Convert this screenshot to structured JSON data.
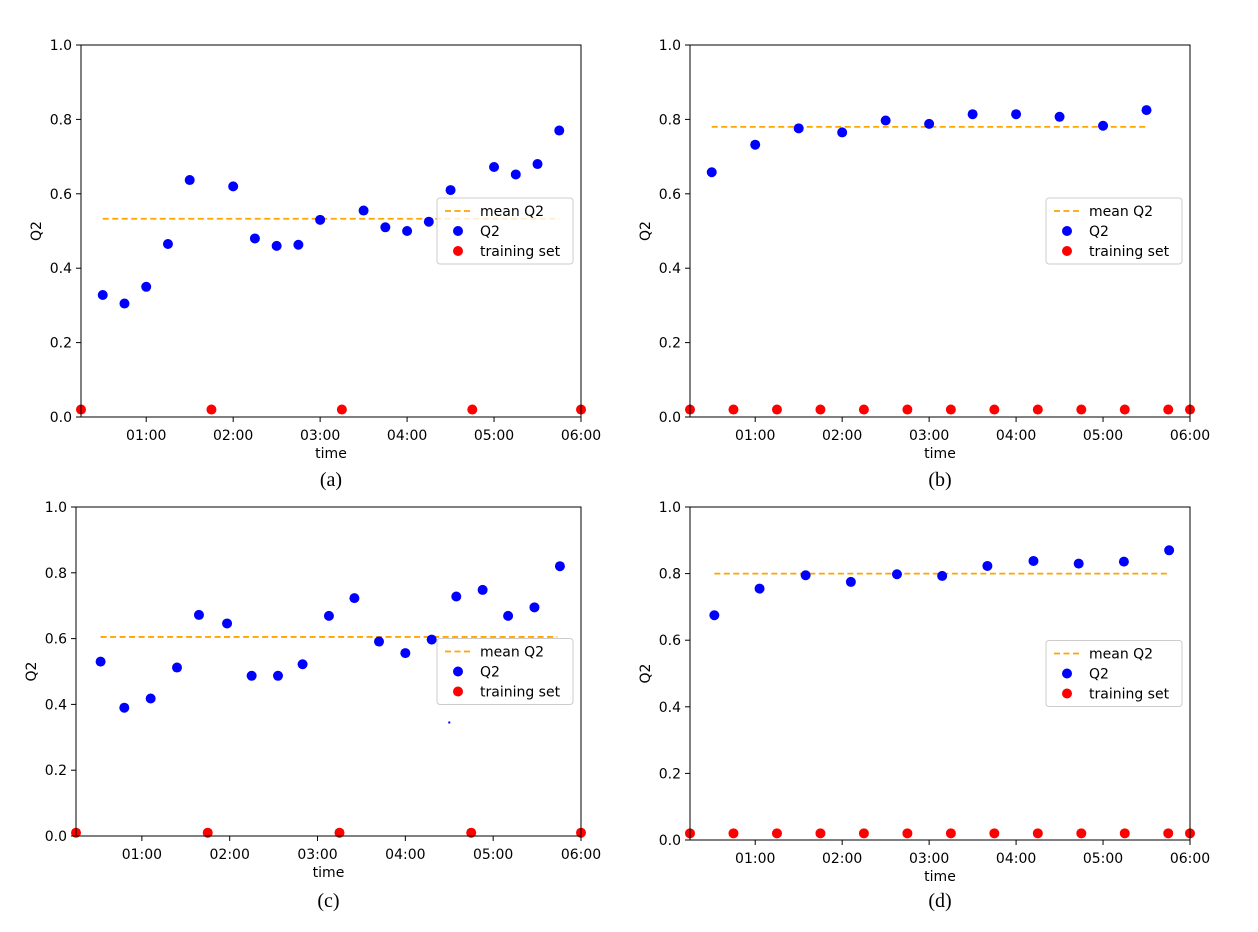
{
  "colors": {
    "mean": "#ffa500",
    "q2": "#0000ff",
    "training": "#ff0000",
    "axis": "#000000"
  },
  "chart_data": [
    {
      "panel": "a",
      "caption": "(a)",
      "type": "scatter",
      "xlabel": "time",
      "ylabel": "Q2",
      "xlim": [
        0.25,
        6.0
      ],
      "ylim": [
        0.0,
        1.0
      ],
      "xticks": [
        1,
        2,
        3,
        4,
        5,
        6
      ],
      "xtick_labels": [
        "01:00",
        "02:00",
        "03:00",
        "04:00",
        "05:00",
        "06:00"
      ],
      "yticks": [
        0.0,
        0.2,
        0.4,
        0.6,
        0.8,
        1.0
      ],
      "ytick_labels": [
        "0.0",
        "0.2",
        "0.4",
        "0.6",
        "0.8",
        "1.0"
      ],
      "legend": {
        "position": "center-right",
        "entries": [
          "mean Q2",
          "Q2",
          "training set"
        ]
      },
      "mean_line": {
        "x": [
          0.5,
          5.75
        ],
        "y": 0.533
      },
      "q2": {
        "x": [
          0.5,
          0.75,
          1.0,
          1.25,
          1.5,
          2.0,
          2.25,
          2.5,
          2.75,
          3.0,
          3.5,
          3.75,
          4.0,
          4.25,
          4.5,
          5.0,
          5.25,
          5.5,
          5.75
        ],
        "y": [
          0.328,
          0.305,
          0.35,
          0.465,
          0.637,
          0.62,
          0.48,
          0.46,
          0.463,
          0.53,
          0.555,
          0.51,
          0.5,
          0.525,
          0.61,
          0.672,
          0.652,
          0.68,
          0.77
        ]
      },
      "training": {
        "x": [
          0.25,
          1.75,
          3.25,
          4.75,
          6.0
        ],
        "y": [
          0.02,
          0.02,
          0.02,
          0.02,
          0.02
        ]
      }
    },
    {
      "panel": "b",
      "caption": "(b)",
      "type": "scatter",
      "xlabel": "time",
      "ylabel": "Q2",
      "xlim": [
        0.25,
        6.0
      ],
      "ylim": [
        0.0,
        1.0
      ],
      "xticks": [
        1,
        2,
        3,
        4,
        5,
        6
      ],
      "xtick_labels": [
        "01:00",
        "02:00",
        "03:00",
        "04:00",
        "05:00",
        "06:00"
      ],
      "yticks": [
        0.0,
        0.2,
        0.4,
        0.6,
        0.8,
        1.0
      ],
      "ytick_labels": [
        "0.0",
        "0.2",
        "0.4",
        "0.6",
        "0.8",
        "1.0"
      ],
      "legend": {
        "position": "center-right",
        "entries": [
          "mean Q2",
          "Q2",
          "training set"
        ]
      },
      "mean_line": {
        "x": [
          0.5,
          5.5
        ],
        "y": 0.78
      },
      "q2": {
        "x": [
          0.5,
          1.0,
          1.5,
          2.0,
          2.5,
          3.0,
          3.5,
          4.0,
          4.5,
          5.0,
          5.5
        ],
        "y": [
          0.658,
          0.732,
          0.776,
          0.765,
          0.797,
          0.788,
          0.814,
          0.814,
          0.807,
          0.783,
          0.825
        ]
      },
      "training": {
        "x": [
          0.25,
          0.75,
          1.25,
          1.75,
          2.25,
          2.75,
          3.25,
          3.75,
          4.25,
          4.75,
          5.25,
          5.75,
          6.0
        ],
        "y": [
          0.02,
          0.02,
          0.02,
          0.02,
          0.02,
          0.02,
          0.02,
          0.02,
          0.02,
          0.02,
          0.02,
          0.02,
          0.02
        ]
      }
    },
    {
      "panel": "c",
      "caption": "(c)",
      "type": "scatter",
      "xlabel": "time",
      "ylabel": "Q2",
      "xlim": [
        0.25,
        6.0
      ],
      "ylim": [
        0.0,
        1.0
      ],
      "xticks": [
        1,
        2,
        3,
        4,
        5,
        6
      ],
      "xtick_labels": [
        "01:00",
        "02:00",
        "03:00",
        "04:00",
        "05:00",
        "06:00"
      ],
      "yticks": [
        0.0,
        0.2,
        0.4,
        0.6,
        0.8,
        1.0
      ],
      "ytick_labels": [
        "0.0",
        "0.2",
        "0.4",
        "0.6",
        "0.8",
        "1.0"
      ],
      "legend": {
        "position": "center-right",
        "entries": [
          "mean Q2",
          "Q2",
          "training set"
        ]
      },
      "mean_line": {
        "x": [
          0.53,
          5.73
        ],
        "y": 0.605
      },
      "q2": {
        "x": [
          0.53,
          0.8,
          1.1,
          1.4,
          1.65,
          1.97,
          2.25,
          2.55,
          2.83,
          3.13,
          3.42,
          3.7,
          4.0,
          4.3,
          4.58,
          4.88,
          5.17,
          5.47,
          5.76
        ],
        "y": [
          0.53,
          0.39,
          0.418,
          0.512,
          0.672,
          0.646,
          0.487,
          0.487,
          0.522,
          0.669,
          0.723,
          0.591,
          0.556,
          0.597,
          0.728,
          0.748,
          0.669,
          0.695,
          0.82
        ]
      },
      "training": {
        "x": [
          0.25,
          1.75,
          3.25,
          4.75,
          6.0
        ],
        "y": [
          0.01,
          0.01,
          0.01,
          0.01,
          0.01
        ]
      }
    },
    {
      "panel": "d",
      "caption": "(d)",
      "type": "scatter",
      "xlabel": "time",
      "ylabel": "Q2",
      "xlim": [
        0.25,
        6.0
      ],
      "ylim": [
        0.0,
        1.0
      ],
      "xticks": [
        1,
        2,
        3,
        4,
        5,
        6
      ],
      "xtick_labels": [
        "01:00",
        "02:00",
        "03:00",
        "04:00",
        "05:00",
        "06:00"
      ],
      "yticks": [
        0.0,
        0.2,
        0.4,
        0.6,
        0.8,
        1.0
      ],
      "ytick_labels": [
        "0.0",
        "0.2",
        "0.4",
        "0.6",
        "0.8",
        "1.0"
      ],
      "legend": {
        "position": "center-right",
        "entries": [
          "mean Q2",
          "Q2",
          "training set"
        ]
      },
      "mean_line": {
        "x": [
          0.53,
          5.76
        ],
        "y": 0.8
      },
      "q2": {
        "x": [
          0.53,
          1.05,
          1.58,
          2.1,
          2.63,
          3.15,
          3.67,
          4.2,
          4.72,
          5.24,
          5.76
        ],
        "y": [
          0.675,
          0.755,
          0.795,
          0.775,
          0.798,
          0.793,
          0.823,
          0.838,
          0.83,
          0.836,
          0.87
        ]
      },
      "training": {
        "x": [
          0.25,
          0.75,
          1.25,
          1.75,
          2.25,
          2.75,
          3.25,
          3.75,
          4.25,
          4.75,
          5.25,
          5.75,
          6.0
        ],
        "y": [
          0.02,
          0.02,
          0.02,
          0.02,
          0.02,
          0.02,
          0.02,
          0.02,
          0.02,
          0.02,
          0.02,
          0.02,
          0.02
        ]
      }
    }
  ]
}
